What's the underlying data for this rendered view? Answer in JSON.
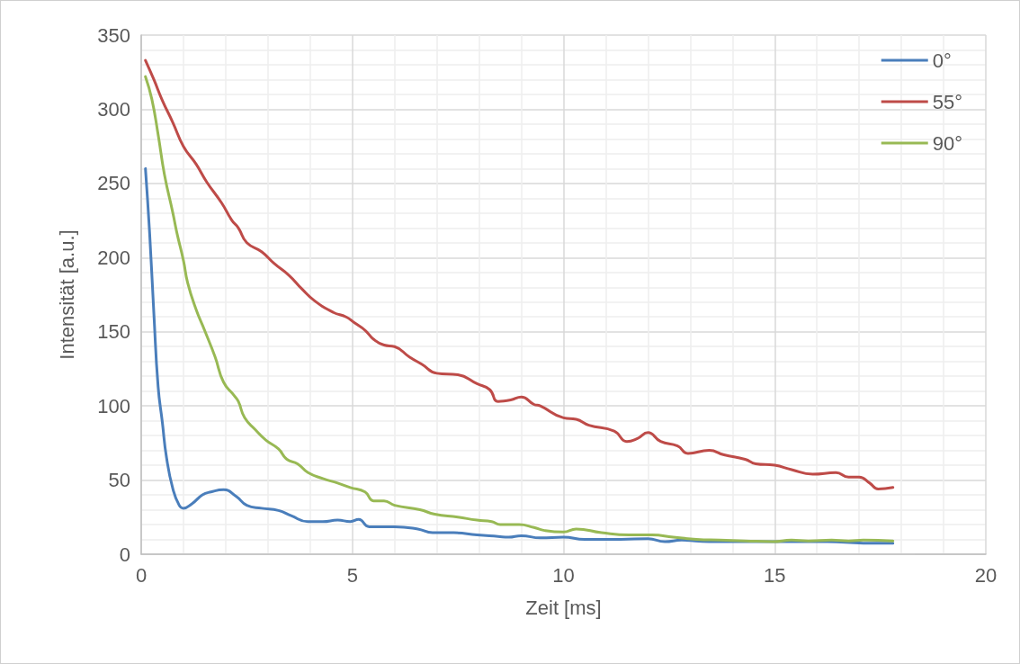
{
  "chart_data": {
    "type": "line",
    "xlabel": "Zeit [ms]",
    "ylabel": "Intensität [a.u.]",
    "xlim": [
      0,
      20
    ],
    "xticks": [
      0,
      5,
      10,
      15,
      20
    ],
    "ylim": [
      0,
      350
    ],
    "yticks": [
      0,
      50,
      100,
      150,
      200,
      250,
      300,
      350
    ],
    "grid": true,
    "legend": "top right",
    "series": [
      {
        "name": "0°",
        "color": "#4a7ebb",
        "x": [
          0.1,
          0.2,
          0.3,
          0.4,
          0.5,
          0.6,
          0.75,
          0.9,
          1.0,
          1.2,
          1.45,
          1.65,
          1.95,
          2.25,
          2.5,
          2.85,
          3.25,
          3.55,
          3.95,
          4.3,
          4.65,
          4.95,
          5.15,
          5.4,
          6.0,
          6.55,
          6.9,
          7.4,
          7.95,
          8.45,
          8.7,
          9.0,
          9.45,
          10.0,
          10.5,
          11.35,
          12.0,
          12.4,
          12.8,
          13.45,
          14.1,
          14.75,
          15.4,
          16.25,
          17.1,
          17.8
        ],
        "values": [
          260,
          216,
          162,
          113,
          89,
          65,
          44,
          33,
          31,
          34,
          40,
          42,
          43.5,
          39,
          33,
          31,
          29.5,
          26,
          22,
          22,
          23,
          22,
          23.5,
          18.5,
          18.5,
          17,
          14.5,
          14.5,
          13,
          12,
          11.5,
          12.5,
          11,
          11.5,
          10,
          10,
          10.5,
          8.5,
          9.5,
          8.5,
          8.5,
          8.5,
          8.5,
          8.5,
          7.5,
          7.5
        ]
      },
      {
        "name": "55°",
        "color": "#be4b48",
        "x": [
          0.1,
          0.3,
          0.5,
          0.75,
          1.0,
          1.3,
          1.55,
          1.9,
          2.15,
          2.3,
          2.5,
          2.85,
          3.15,
          3.5,
          3.8,
          4.1,
          4.55,
          4.85,
          5.05,
          5.3,
          5.5,
          5.75,
          6.0,
          6.35,
          6.65,
          7.0,
          7.5,
          7.95,
          8.25,
          8.45,
          8.75,
          9.0,
          9.3,
          9.45,
          10.0,
          10.3,
          10.6,
          11.2,
          11.5,
          11.75,
          12.0,
          12.3,
          12.7,
          12.95,
          13.45,
          13.8,
          14.3,
          14.55,
          15.0,
          15.4,
          15.9,
          16.45,
          16.75,
          17.0,
          17.25,
          17.45,
          17.8
        ],
        "values": [
          333,
          320,
          306,
          291,
          275,
          263,
          251,
          237,
          225,
          220,
          210,
          204,
          196,
          188,
          179,
          171,
          163,
          160,
          156,
          151,
          145,
          141,
          140,
          133,
          128,
          122,
          121,
          115,
          111,
          103,
          104,
          106,
          101,
          100,
          92,
          91,
          87,
          83,
          76,
          78,
          82,
          76,
          73,
          68,
          70,
          67,
          64,
          61,
          60,
          57,
          54,
          55,
          52,
          52,
          48,
          44,
          45
        ]
      },
      {
        "name": "90°",
        "color": "#98b954",
        "x": [
          0.1,
          0.25,
          0.4,
          0.55,
          0.75,
          0.85,
          1.0,
          1.1,
          1.3,
          1.5,
          1.75,
          1.95,
          2.2,
          2.3,
          2.45,
          2.7,
          2.95,
          3.25,
          3.45,
          3.7,
          3.95,
          4.3,
          4.65,
          4.95,
          5.3,
          5.5,
          5.75,
          6.0,
          6.6,
          6.95,
          7.5,
          7.95,
          8.3,
          8.5,
          8.95,
          9.3,
          9.55,
          10.0,
          10.3,
          10.9,
          11.55,
          12.1,
          12.6,
          13.15,
          13.7,
          14.3,
          14.95,
          15.4,
          15.8,
          16.35,
          16.75,
          17.1,
          17.8
        ],
        "values": [
          322,
          307,
          283,
          256,
          230,
          216,
          198,
          183,
          165,
          151,
          133,
          116,
          107,
          103,
          92,
          84,
          77,
          71,
          64,
          61,
          55,
          51,
          48,
          45,
          42,
          36,
          36,
          33,
          30,
          27,
          25,
          23,
          22,
          20,
          20,
          18,
          16,
          15,
          17,
          14.5,
          13,
          13,
          11.5,
          10,
          9.5,
          9,
          8.5,
          9.5,
          9,
          9.5,
          9,
          9.5,
          9
        ]
      }
    ]
  }
}
